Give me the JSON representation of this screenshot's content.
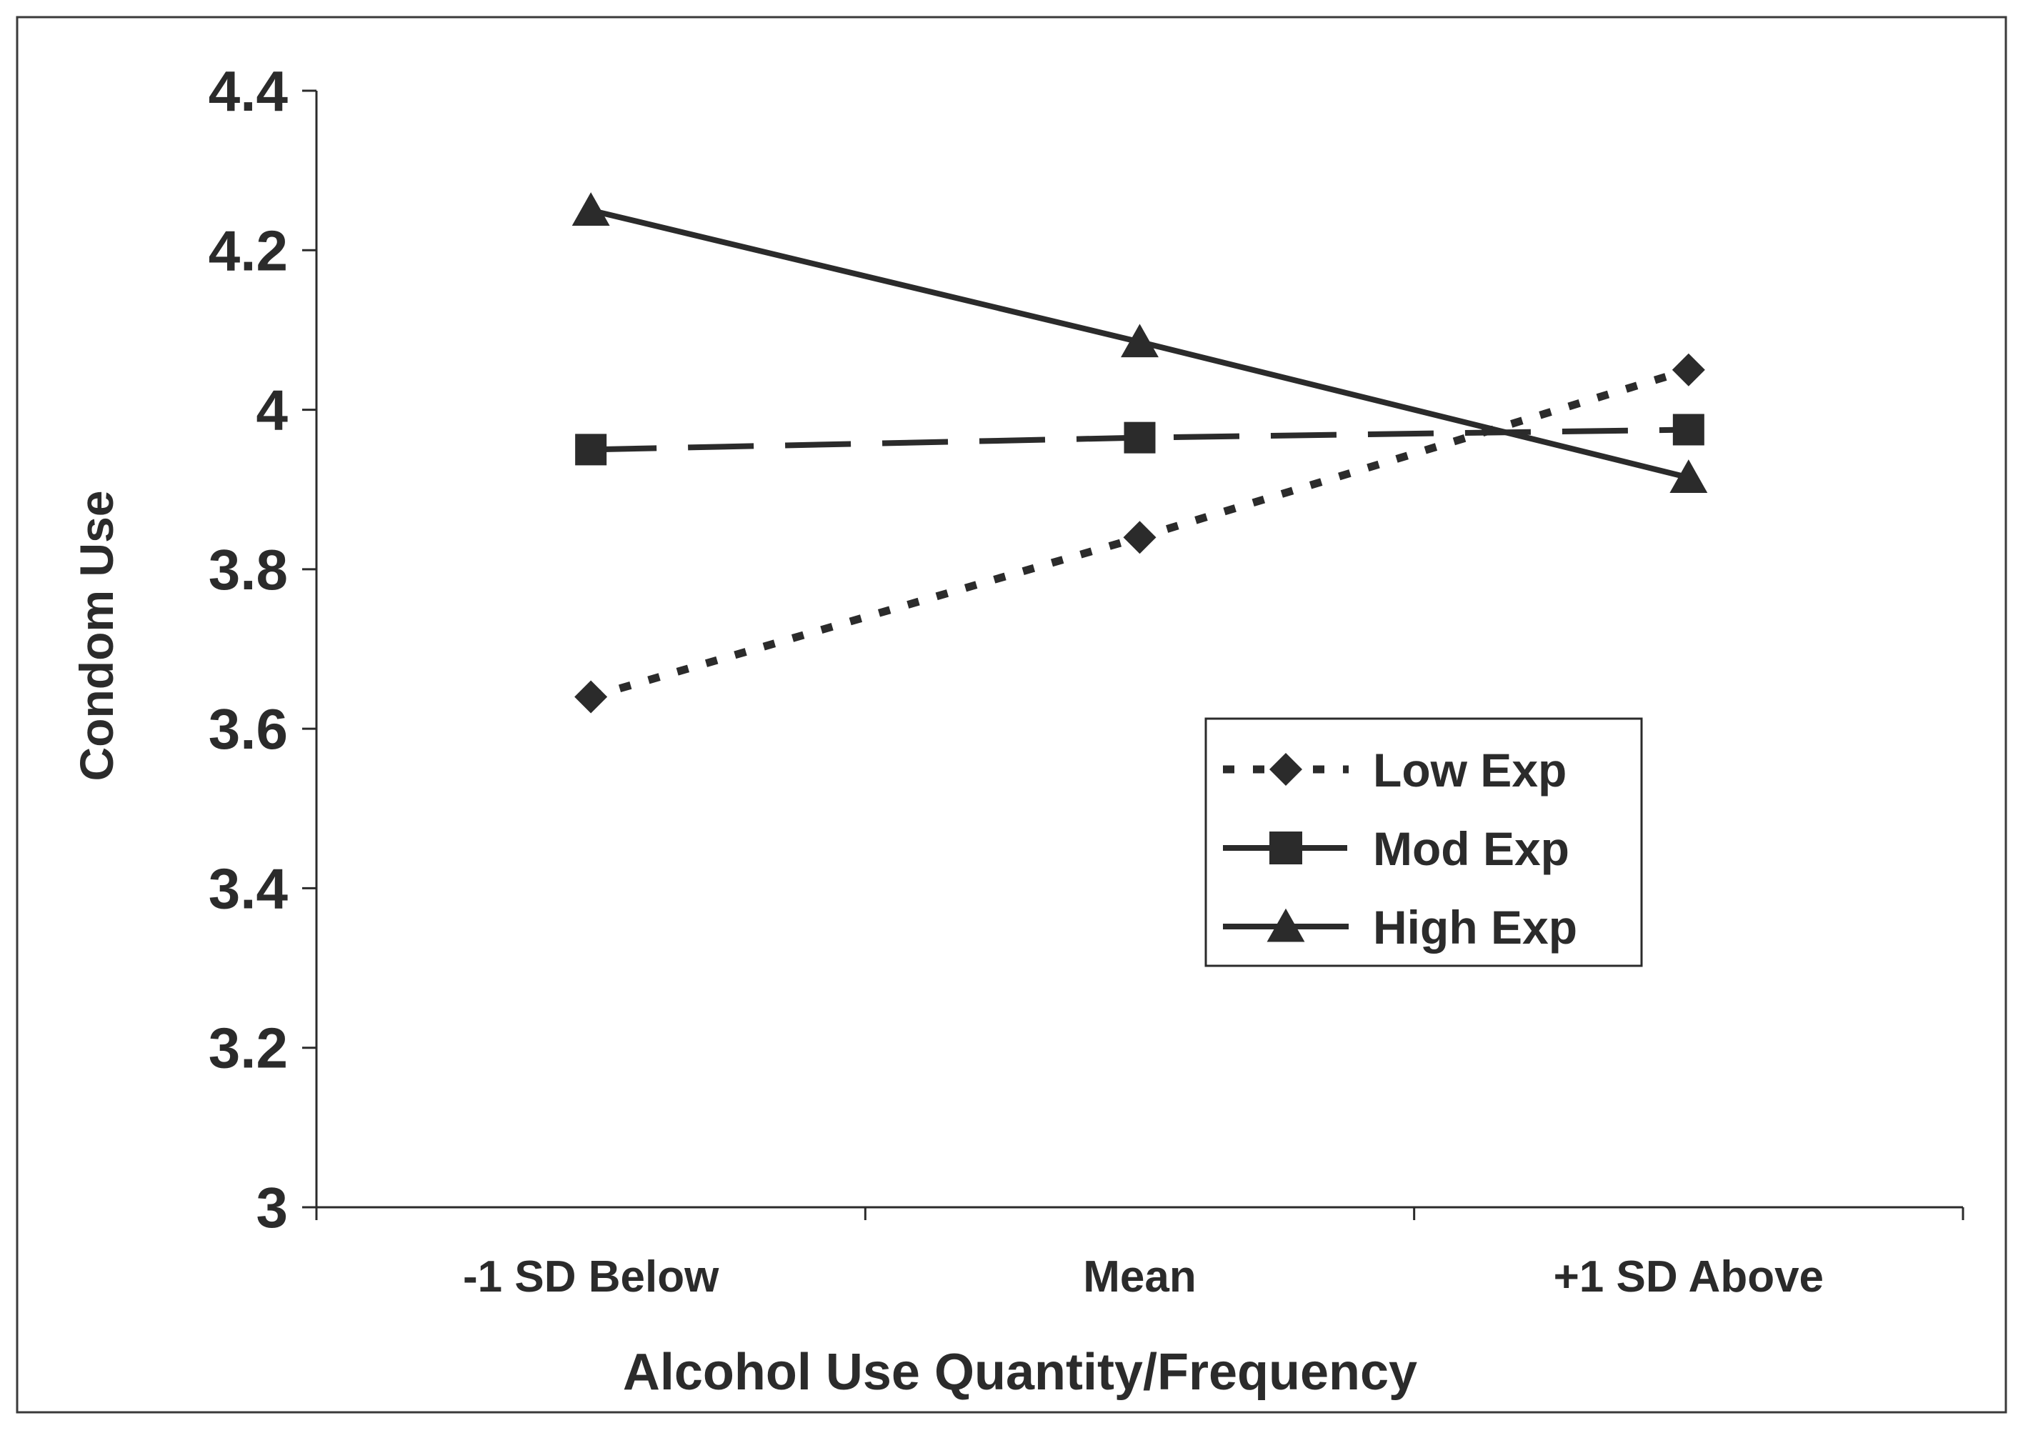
{
  "chart_data": {
    "type": "line",
    "title": "",
    "xlabel": "Alcohol Use Quantity/Frequency",
    "ylabel": "Condom Use",
    "categories": [
      "-1 SD Below",
      "Mean",
      "+1 SD Above"
    ],
    "ylim": [
      3,
      4.4
    ],
    "yticks": [
      "3",
      "3.2",
      "3.4",
      "3.6",
      "3.8",
      "4",
      "4.2",
      "4.4"
    ],
    "grid": false,
    "legend_position": "right-middle",
    "series": [
      {
        "name": "Low Exp",
        "values": [
          3.64,
          3.84,
          4.05
        ],
        "line": "dotted",
        "marker": "diamond"
      },
      {
        "name": "Mod Exp",
        "values": [
          3.95,
          3.965,
          3.975
        ],
        "line": "dashed",
        "marker": "square"
      },
      {
        "name": "High Exp",
        "values": [
          4.25,
          4.085,
          3.915
        ],
        "line": "solid",
        "marker": "triangle"
      }
    ],
    "colors": {
      "line": "#2b2b2b",
      "frame": "#3a3a3a",
      "background": "#ffffff"
    }
  }
}
